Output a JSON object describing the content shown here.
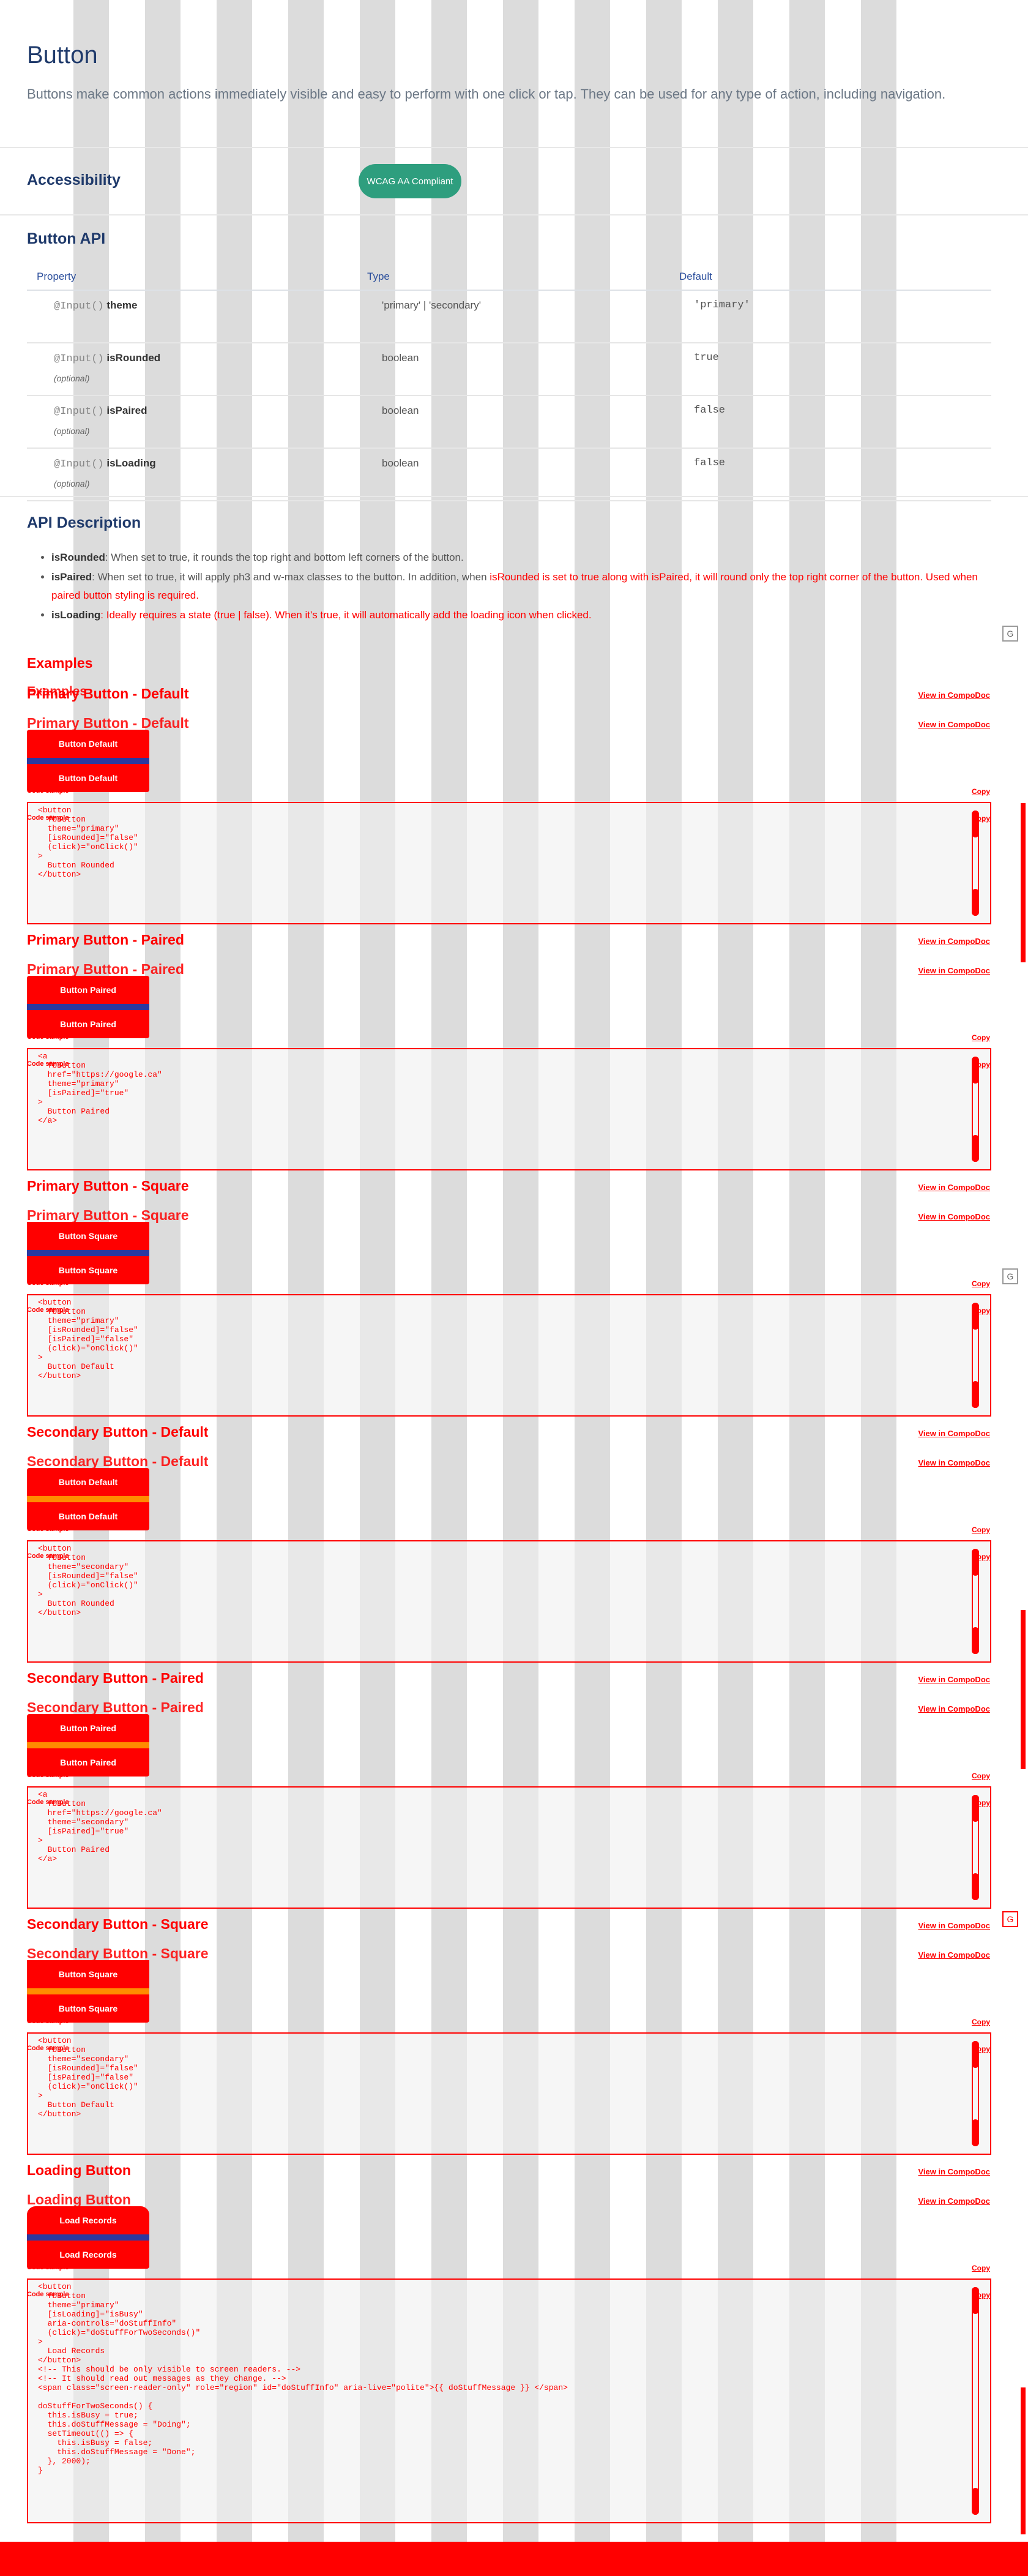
{
  "header": {
    "title": "Button",
    "intro": "Buttons make common actions immediately visible and easy to perform with one click or tap. They can be used for any type of action, including navigation."
  },
  "accessibility": {
    "heading": "Accessibility",
    "badge": "WCAG AA Compliant"
  },
  "api": {
    "heading": "Button API",
    "columns": [
      "Property",
      "Type",
      "Default"
    ],
    "rows": [
      {
        "decorator": "@Input()",
        "name": "theme",
        "optional": "",
        "type": "'primary' | 'secondary'",
        "default": "'primary'"
      },
      {
        "decorator": "@Input()",
        "name": "isRounded",
        "optional": "(optional)",
        "type": "boolean",
        "default": "true"
      },
      {
        "decorator": "@Input()",
        "name": "isPaired",
        "optional": "(optional)",
        "type": "boolean",
        "default": "false"
      },
      {
        "decorator": "@Input()",
        "name": "isLoading",
        "optional": "(optional)",
        "type": "boolean",
        "default": "false"
      }
    ]
  },
  "description": {
    "heading": "API Description",
    "items": [
      {
        "term": "isRounded",
        "text": ": When set to true, it rounds the top right and bottom left corners of the button."
      },
      {
        "term": "isPaired",
        "text": ": When set to true, it will apply ph3 and w-max classes to the button. In addition, when ",
        "red": "isRounded is set to true along with isPaired, it will round only the top right corner of the button. Used when paired button styling is required."
      },
      {
        "term": "isLoading",
        "text": "",
        "red": ": Ideally requires a state (true | false). When it's true, it will automatically add the loading icon when clicked."
      }
    ]
  },
  "examples": {
    "heading": "Examples",
    "view_link": "View in CompoDoc",
    "copy_link": "Copy",
    "code_label": "Code sample",
    "items": [
      {
        "title": "Primary Button - Default",
        "button": "Button Default",
        "code": "<button\n  fbButton\n  theme=\"primary\"\n  [isRounded]=\"false\"\n  (click)=\"onClick()\"\n>\n  Button Rounded\n</button>"
      },
      {
        "title": "Primary Button - Paired",
        "button": "Button Paired",
        "code": "<a\n  fbButton\n  href=\"https://google.ca\"\n  theme=\"primary\"\n  [isPaired]=\"true\"\n>\n  Button Paired\n</a>"
      },
      {
        "title": "Primary Button - Square",
        "button": "Button Square",
        "code": "<button\n  fbButton\n  theme=\"primary\"\n  [isRounded]=\"false\"\n  [isPaired]=\"false\"\n  (click)=\"onClick()\"\n>\n  Button Default\n</button>"
      },
      {
        "title": "Secondary Button - Default",
        "button": "Button Default",
        "code": "<button\n  fbButton\n  theme=\"secondary\"\n  [isRounded]=\"false\"\n  (click)=\"onClick()\"\n>\n  Button Rounded\n</button>"
      },
      {
        "title": "Secondary Button - Paired",
        "button": "Button Paired",
        "code": "<a\n  fbButton\n  href=\"https://google.ca\"\n  theme=\"secondary\"\n  [isPaired]=\"true\"\n>\n  Button Paired\n</a>"
      },
      {
        "title": "Secondary Button - Square",
        "button": "Button Square",
        "code": "<button\n  fbButton\n  theme=\"secondary\"\n  [isRounded]=\"false\"\n  [isPaired]=\"false\"\n  (click)=\"onClick()\"\n>\n  Button Default\n</button>"
      },
      {
        "title": "Loading Button",
        "button": "Load Records",
        "code": "<button\n  fbButton\n  theme=\"primary\"\n  [isLoading]=\"isBusy\"\n  aria-controls=\"doStuffInfo\"\n  (click)=\"doStuffForTwoSeconds()\"\n>\n  Load Records\n</button>\n<!-- This should be only visible to screen readers. -->\n<!-- It should read out messages as they change. -->\n<span class=\"screen-reader-only\" role=\"region\" id=\"doStuffInfo\" aria-live=\"polite\">{{ doStuffMessage }} </span>\n\ndoStuffForTwoSeconds() {\n  this.isBusy = true;\n  this.doStuffMessage = \"Doing\";\n  setTimeout(() => {\n    this.isBusy = false;\n    this.doStuffMessage = \"Done\";\n  }, 2000);\n}"
      }
    ]
  },
  "colors": {
    "accent": "#ff0000",
    "heading": "#1f3a6b",
    "badge": "#2e9e7e",
    "primary_strip": "#2c38a0",
    "secondary_strip": "#ff8c00"
  },
  "icons": {
    "scroll_widget": "G"
  }
}
